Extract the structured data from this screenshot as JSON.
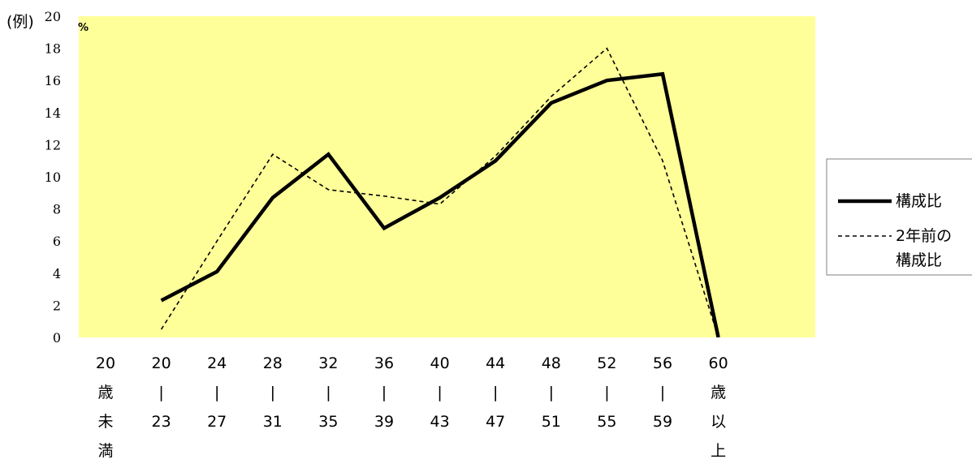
{
  "chart_data": {
    "type": "line",
    "ylabel": "(例)",
    "y_unit": "%",
    "ylim": [
      0,
      20
    ],
    "yticks": [
      "0",
      "2",
      "4",
      "6",
      "8",
      "10",
      "12",
      "14",
      "16",
      "18",
      "20"
    ],
    "categories": [
      [
        "20",
        "歳",
        "未",
        "満"
      ],
      [
        "20",
        "|",
        "23"
      ],
      [
        "24",
        "|",
        "27"
      ],
      [
        "28",
        "|",
        "31"
      ],
      [
        "32",
        "|",
        "35"
      ],
      [
        "36",
        "|",
        "39"
      ],
      [
        "40",
        "|",
        "43"
      ],
      [
        "44",
        "|",
        "47"
      ],
      [
        "48",
        "|",
        "51"
      ],
      [
        "52",
        "|",
        "55"
      ],
      [
        "56",
        "|",
        "59"
      ],
      [
        "60",
        "歳",
        "以",
        "上"
      ]
    ],
    "series": [
      {
        "name": "構成比",
        "style": "solid",
        "color": "#000000",
        "values": [
          null,
          2.3,
          4.1,
          8.7,
          11.4,
          6.8,
          8.7,
          11.0,
          14.6,
          16.0,
          16.4,
          0
        ]
      },
      {
        "name": "2年前の構成比",
        "style": "dashed",
        "color": "#000000",
        "values": [
          null,
          0.5,
          6.0,
          11.4,
          9.2,
          8.8,
          8.3,
          11.3,
          15.0,
          18.0,
          11.0,
          0
        ]
      }
    ],
    "legend": {
      "position": "right",
      "entries": [
        {
          "series": "構成比",
          "lines": [
            "構成比"
          ]
        },
        {
          "series": "2年前の構成比",
          "lines": [
            "2年前の",
            "構成比"
          ]
        }
      ]
    },
    "plot_background": "#ffff99",
    "grid": false
  }
}
